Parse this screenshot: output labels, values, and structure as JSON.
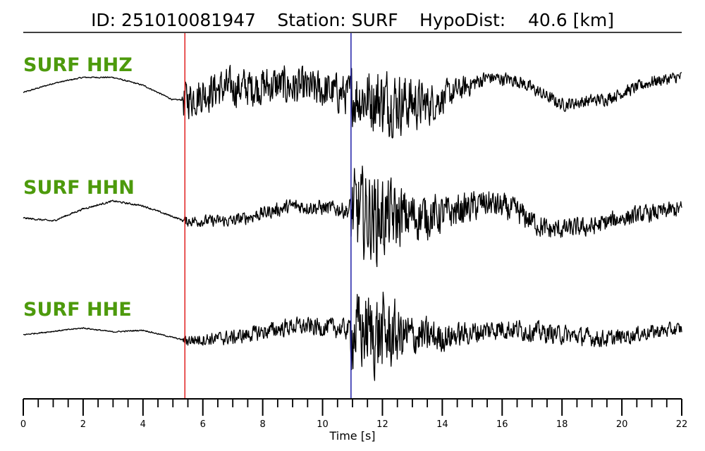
{
  "header": {
    "id_text": "ID: 251010081947",
    "station_text": "Station: SURF",
    "dist_text": "HypoDist:    40.6 [km]"
  },
  "chart_data": {
    "type": "line",
    "title": "ID: 251010081947   Station: SURF   HypoDist:    40.6 [km]",
    "xlabel": "Time [s]",
    "xlim": [
      0,
      22
    ],
    "x_ticks": [
      "0",
      "2",
      "4",
      "6",
      "8",
      "10",
      "12",
      "14",
      "16",
      "18",
      "20",
      "22"
    ],
    "minor_tick_step": 0.5,
    "grid": false,
    "label_color": "#4d9a0c",
    "line_color": "#000000",
    "picks": [
      {
        "time": 5.4,
        "color": "#e02020"
      },
      {
        "time": 10.95,
        "color": "#1f1fa8"
      }
    ],
    "series": [
      {
        "name": "SURF HHZ",
        "base": 0.02,
        "noise": [
          [
            0,
            0.015
          ],
          [
            5.3,
            0.015
          ],
          [
            5.35,
            0.42
          ],
          [
            10.9,
            0.44
          ],
          [
            10.95,
            0.65
          ],
          [
            12.0,
            0.75
          ],
          [
            12.8,
            0.65
          ],
          [
            14.0,
            0.35
          ],
          [
            15.5,
            0.15
          ],
          [
            22,
            0.13
          ]
        ],
        "trend": [
          [
            0,
            0.0
          ],
          [
            1,
            0.15
          ],
          [
            2,
            0.25
          ],
          [
            3,
            0.25
          ],
          [
            4,
            0.12
          ],
          [
            5,
            -0.12
          ],
          [
            5.4,
            -0.12
          ],
          [
            6.5,
            0.06
          ],
          [
            8.5,
            0.12
          ],
          [
            10.5,
            0.0
          ],
          [
            11.5,
            -0.1
          ],
          [
            13.5,
            -0.2
          ],
          [
            15.5,
            0.25
          ],
          [
            16.5,
            0.2
          ],
          [
            18,
            -0.2
          ],
          [
            19.5,
            -0.1
          ],
          [
            21,
            0.18
          ],
          [
            22,
            0.26
          ]
        ]
      },
      {
        "name": "SURF HHN",
        "base": -0.05,
        "noise": [
          [
            0,
            0.02
          ],
          [
            5.3,
            0.02
          ],
          [
            5.4,
            0.12
          ],
          [
            8.0,
            0.15
          ],
          [
            10.9,
            0.18
          ],
          [
            10.95,
            0.95
          ],
          [
            11.8,
            1.0
          ],
          [
            12.8,
            0.6
          ],
          [
            14.5,
            0.35
          ],
          [
            16.5,
            0.28
          ],
          [
            18,
            0.22
          ],
          [
            22,
            0.18
          ]
        ],
        "trend": [
          [
            0,
            0.0
          ],
          [
            1,
            -0.05
          ],
          [
            2,
            0.15
          ],
          [
            3,
            0.28
          ],
          [
            4,
            0.2
          ],
          [
            5.4,
            -0.05
          ],
          [
            7,
            -0.05
          ],
          [
            9,
            0.2
          ],
          [
            10.5,
            0.15
          ],
          [
            12,
            0.0
          ],
          [
            14,
            0.05
          ],
          [
            15.5,
            0.25
          ],
          [
            16.5,
            0.1
          ],
          [
            17.5,
            -0.2
          ],
          [
            19,
            -0.15
          ],
          [
            20,
            0.0
          ],
          [
            22,
            0.15
          ]
        ]
      },
      {
        "name": "SURF HHE",
        "base": 0.0,
        "noise": [
          [
            0,
            0.015
          ],
          [
            5.3,
            0.015
          ],
          [
            5.4,
            0.14
          ],
          [
            8.5,
            0.2
          ],
          [
            10.9,
            0.24
          ],
          [
            10.95,
            0.9
          ],
          [
            12.0,
            1.0
          ],
          [
            12.8,
            0.55
          ],
          [
            14.5,
            0.28
          ],
          [
            22,
            0.16
          ]
        ],
        "trend": [
          [
            0,
            0.0
          ],
          [
            2,
            0.12
          ],
          [
            3,
            0.05
          ],
          [
            4,
            0.08
          ],
          [
            5.4,
            -0.1
          ],
          [
            7,
            -0.05
          ],
          [
            9,
            0.15
          ],
          [
            10.5,
            0.12
          ],
          [
            12,
            0.0
          ],
          [
            14,
            -0.05
          ],
          [
            16,
            0.12
          ],
          [
            18,
            0.0
          ],
          [
            19.5,
            -0.08
          ],
          [
            21,
            0.05
          ],
          [
            22,
            0.1
          ]
        ]
      }
    ]
  }
}
